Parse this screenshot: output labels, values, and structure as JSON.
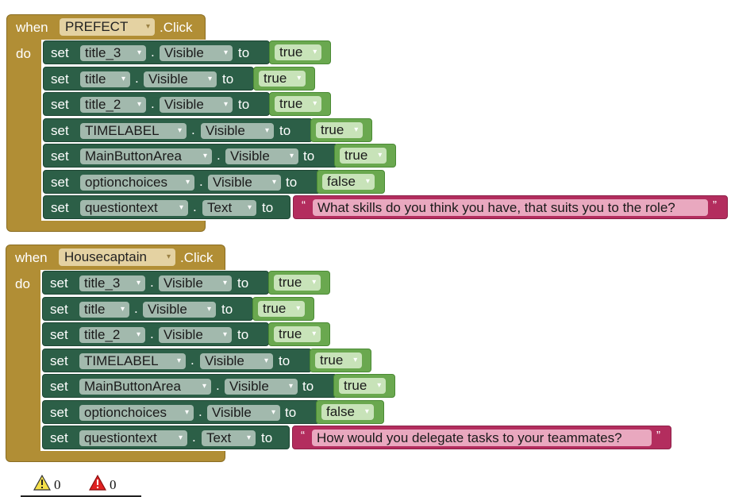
{
  "events": [
    {
      "when": "when",
      "component": "PREFECT",
      "event": ".Click",
      "do": "do",
      "statements": [
        {
          "set": "set",
          "component": "title_3",
          "dot": ".",
          "property": "Visible",
          "to": "to",
          "type": "bool",
          "value": "true"
        },
        {
          "set": "set",
          "component": "title",
          "dot": ".",
          "property": "Visible",
          "to": "to",
          "type": "bool",
          "value": "true"
        },
        {
          "set": "set",
          "component": "title_2",
          "dot": ".",
          "property": "Visible",
          "to": "to",
          "type": "bool",
          "value": "true"
        },
        {
          "set": "set",
          "component": "TIMELABEL",
          "dot": ".",
          "property": "Visible",
          "to": "to",
          "type": "bool",
          "value": "true"
        },
        {
          "set": "set",
          "component": "MainButtonArea",
          "dot": ".",
          "property": "Visible",
          "to": "to",
          "type": "bool",
          "value": "true"
        },
        {
          "set": "set",
          "component": "optionchoices",
          "dot": ".",
          "property": "Visible",
          "to": "to",
          "type": "bool",
          "value": "false"
        },
        {
          "set": "set",
          "component": "questiontext",
          "dot": ".",
          "property": "Text",
          "to": "to",
          "type": "text",
          "value": "What skills do you think you have, that suits you to the role?"
        }
      ]
    },
    {
      "when": "when",
      "component": "Housecaptain",
      "event": ".Click",
      "do": "do",
      "statements": [
        {
          "set": "set",
          "component": "title_3",
          "dot": ".",
          "property": "Visible",
          "to": "to",
          "type": "bool",
          "value": "true"
        },
        {
          "set": "set",
          "component": "title",
          "dot": ".",
          "property": "Visible",
          "to": "to",
          "type": "bool",
          "value": "true"
        },
        {
          "set": "set",
          "component": "title_2",
          "dot": ".",
          "property": "Visible",
          "to": "to",
          "type": "bool",
          "value": "true"
        },
        {
          "set": "set",
          "component": "TIMELABEL",
          "dot": ".",
          "property": "Visible",
          "to": "to",
          "type": "bool",
          "value": "true"
        },
        {
          "set": "set",
          "component": "MainButtonArea",
          "dot": ".",
          "property": "Visible",
          "to": "to",
          "type": "bool",
          "value": "true"
        },
        {
          "set": "set",
          "component": "optionchoices",
          "dot": ".",
          "property": "Visible",
          "to": "to",
          "type": "bool",
          "value": "false"
        },
        {
          "set": "set",
          "component": "questiontext",
          "dot": ".",
          "property": "Text",
          "to": "to",
          "type": "text",
          "value": "How would you delegate tasks to your teammates?"
        }
      ]
    }
  ],
  "dropdown_icon": "▾",
  "quote_open": "“",
  "quote_close": "”",
  "warnings": {
    "icon": "warning-triangle-icon",
    "count": "0"
  },
  "errors": {
    "icon": "error-triangle-icon",
    "count": "0"
  },
  "colors": {
    "event_block": "#b18e35",
    "setter_block": "#2c5f47",
    "boolean_block": "#6aa84f",
    "text_block": "#b32d5e"
  }
}
